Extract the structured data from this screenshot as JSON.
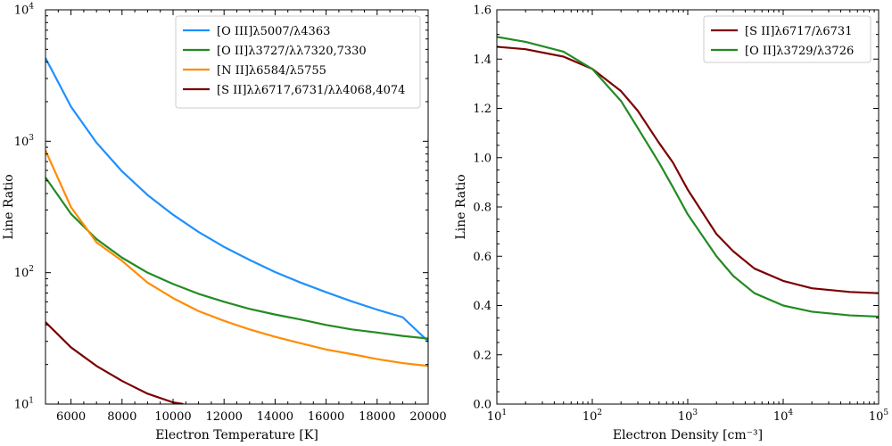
{
  "colors": {
    "oiii": "#1e90ff",
    "oii": "#228b22",
    "nii": "#ff8c00",
    "sii": "#7b0000"
  },
  "chart_data": [
    {
      "type": "line",
      "xlabel": "Electron Temperature [K]",
      "ylabel": "Line Ratio",
      "xlim": [
        5000,
        20000
      ],
      "ylim": [
        10,
        10000
      ],
      "yscale": "log",
      "xticks": [
        6000,
        8000,
        10000,
        12000,
        14000,
        16000,
        18000,
        20000
      ],
      "xtick_labels": [
        "6000",
        "8000",
        "10000",
        "12000",
        "14000",
        "16000",
        "18000",
        "20000"
      ],
      "yticks": [
        10,
        100,
        1000,
        10000
      ],
      "ytick_labels": [
        "10",
        "10",
        "10",
        "10"
      ],
      "ytick_exponents": [
        "1",
        "2",
        "3",
        "4"
      ],
      "grid": false,
      "legend": "upper-right",
      "series": [
        {
          "name": "[O III]λ5007/λ4363",
          "color_key": "oiii",
          "x": [
            5000,
            6000,
            7000,
            8000,
            9000,
            10000,
            11000,
            12000,
            13000,
            14000,
            15000,
            16000,
            17000,
            18000,
            19000,
            20000
          ],
          "y": [
            4300,
            1830,
            975,
            590,
            390,
            276,
            204,
            157,
            125,
            101,
            84,
            71,
            60.5,
            52.3,
            45.8,
            30
          ]
        },
        {
          "name": "[O II]λ3727/λλ7320,7330",
          "color_key": "oii",
          "x": [
            5000,
            6000,
            7000,
            8000,
            9000,
            10000,
            11000,
            12000,
            13000,
            14000,
            15000,
            16000,
            17000,
            18000,
            19000,
            20000
          ],
          "y": [
            530,
            280,
            180,
            130,
            100,
            82,
            69,
            60,
            53,
            48,
            44,
            40,
            37,
            35,
            33,
            31.5
          ]
        },
        {
          "name": "[N II]λ6584/λ5755",
          "color_key": "nii",
          "x": [
            5000,
            6000,
            7000,
            8000,
            9000,
            10000,
            11000,
            12000,
            13000,
            14000,
            15000,
            16000,
            17000,
            18000,
            19000,
            20000
          ],
          "y": [
            850,
            315,
            170,
            123,
            84,
            64,
            51,
            43,
            37,
            32.5,
            29,
            26,
            24,
            22,
            20.5,
            19.5
          ]
        },
        {
          "name": "[S II]λλ6717,6731/λλ4068,4074",
          "color_key": "sii",
          "x": [
            5000,
            6000,
            7000,
            8000,
            9000,
            10000,
            10400
          ],
          "y": [
            42,
            27,
            19.5,
            15,
            12,
            10.3,
            10
          ]
        }
      ]
    },
    {
      "type": "line",
      "xlabel": "Electron Density [cm⁻³]",
      "ylabel": "Line Ratio",
      "xlim": [
        10,
        100000
      ],
      "ylim": [
        0.0,
        1.6
      ],
      "xscale": "log",
      "xticks": [
        10,
        100,
        1000,
        10000,
        100000
      ],
      "xtick_labels": [
        "10",
        "10",
        "10",
        "10",
        "10"
      ],
      "xtick_exponents": [
        "1",
        "2",
        "3",
        "4",
        "5"
      ],
      "yticks": [
        0.0,
        0.2,
        0.4,
        0.6,
        0.8,
        1.0,
        1.2,
        1.4,
        1.6
      ],
      "ytick_labels": [
        "0.0",
        "0.2",
        "0.4",
        "0.6",
        "0.8",
        "1.0",
        "1.2",
        "1.4",
        "1.6"
      ],
      "grid": false,
      "legend": "upper-right",
      "series": [
        {
          "name": "[S II]λ6717/λ6731",
          "color_key": "sii",
          "x": [
            10,
            20,
            50,
            100,
            200,
            300,
            500,
            700,
            1000,
            2000,
            3000,
            5000,
            10000,
            20000,
            50000,
            100000
          ],
          "y": [
            1.45,
            1.44,
            1.41,
            1.36,
            1.27,
            1.19,
            1.06,
            0.98,
            0.87,
            0.69,
            0.62,
            0.55,
            0.5,
            0.47,
            0.455,
            0.45
          ]
        },
        {
          "name": "[O II]λ3729/λ3726",
          "color_key": "oii",
          "x": [
            10,
            20,
            50,
            100,
            200,
            300,
            500,
            700,
            1000,
            2000,
            3000,
            5000,
            10000,
            20000,
            50000,
            100000
          ],
          "y": [
            1.49,
            1.47,
            1.43,
            1.36,
            1.23,
            1.12,
            0.98,
            0.88,
            0.77,
            0.6,
            0.52,
            0.45,
            0.4,
            0.375,
            0.36,
            0.355
          ]
        }
      ]
    }
  ]
}
